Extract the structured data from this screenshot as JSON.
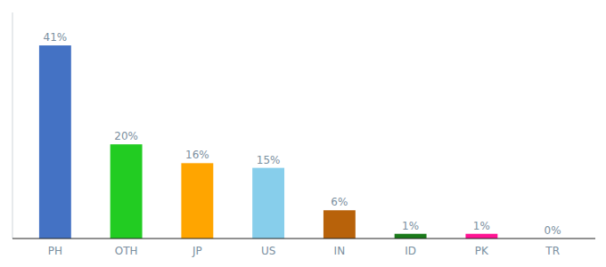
{
  "chart_data": {
    "type": "bar",
    "categories": [
      "PH",
      "OTH",
      "JP",
      "US",
      "IN",
      "ID",
      "PK",
      "TR"
    ],
    "values": [
      41,
      20,
      16,
      15,
      6,
      1,
      1,
      0
    ],
    "value_labels": [
      "41%",
      "20%",
      "16%",
      "15%",
      "6%",
      "1%",
      "1%",
      "0%"
    ],
    "colors": [
      "#4472C4",
      "#22CC22",
      "#FFA500",
      "#87CEEB",
      "#B8620A",
      "#1A7A1A",
      "#FF1493",
      "#AAAAAA"
    ],
    "ylim": [
      0,
      48
    ],
    "data_labels": true,
    "tick_labels": "x",
    "grid": false
  }
}
